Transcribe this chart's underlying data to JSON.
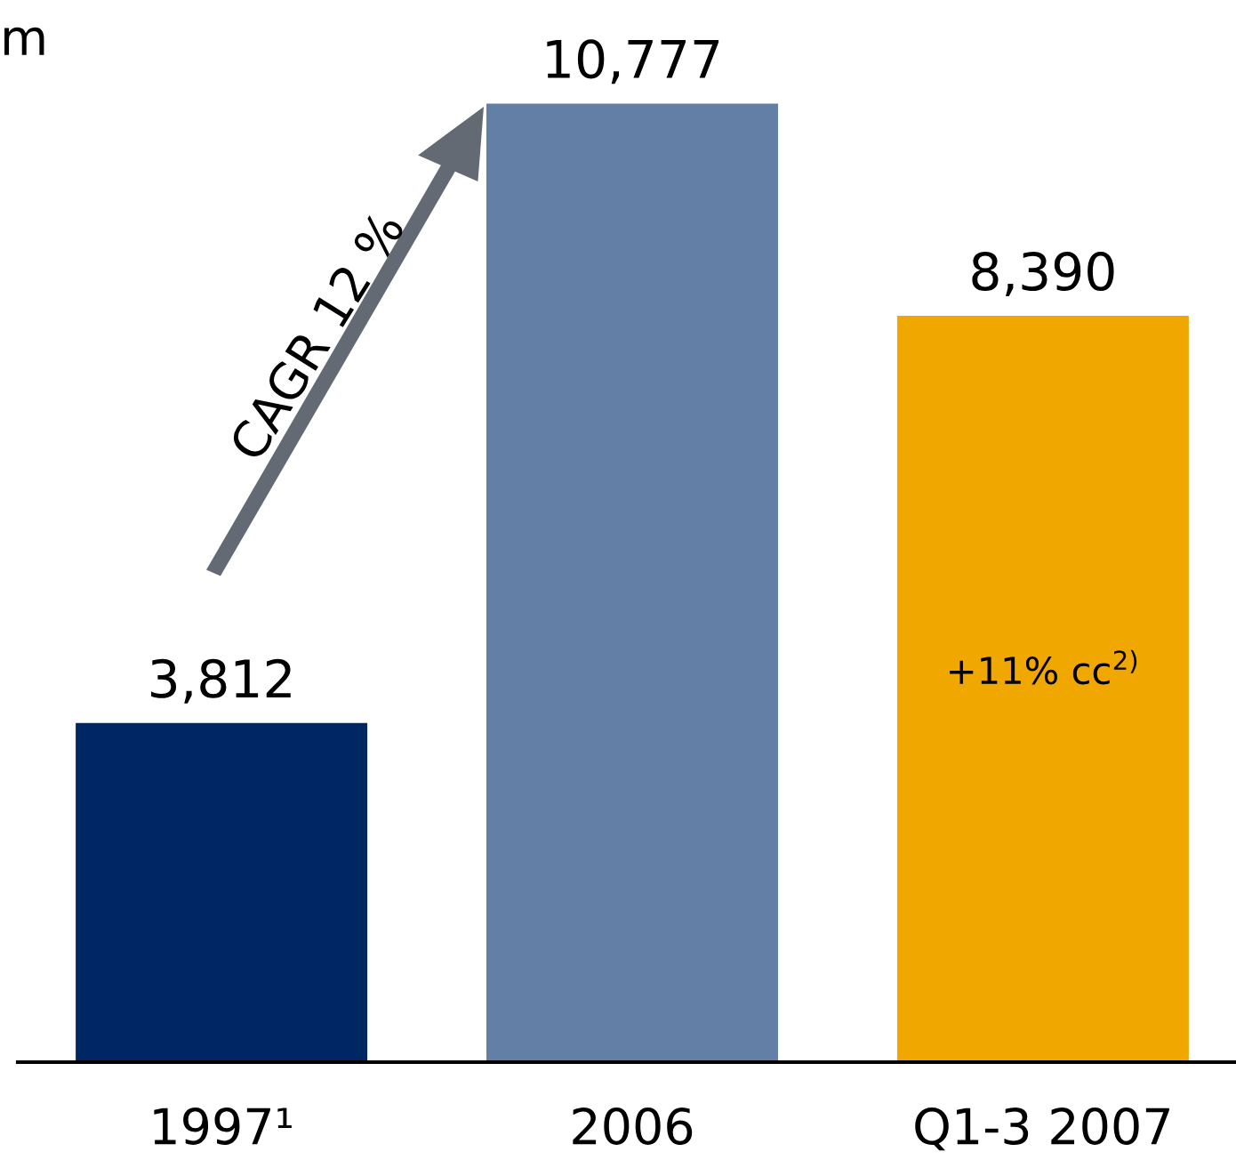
{
  "chart_data": {
    "type": "bar",
    "title": "m",
    "categories": [
      "1997¹",
      "2006",
      "Q1-3 2007"
    ],
    "values": [
      3812,
      10777,
      8390
    ],
    "colors": [
      "#002663",
      "#647fa5",
      "#f0a800"
    ],
    "value_labels": [
      "3,812",
      "10,777",
      "8,390"
    ],
    "annotations": [
      "CAGR 12 %",
      "+11% cc$^{2)}$"
    ],
    "grid": false,
    "legend": false
  }
}
